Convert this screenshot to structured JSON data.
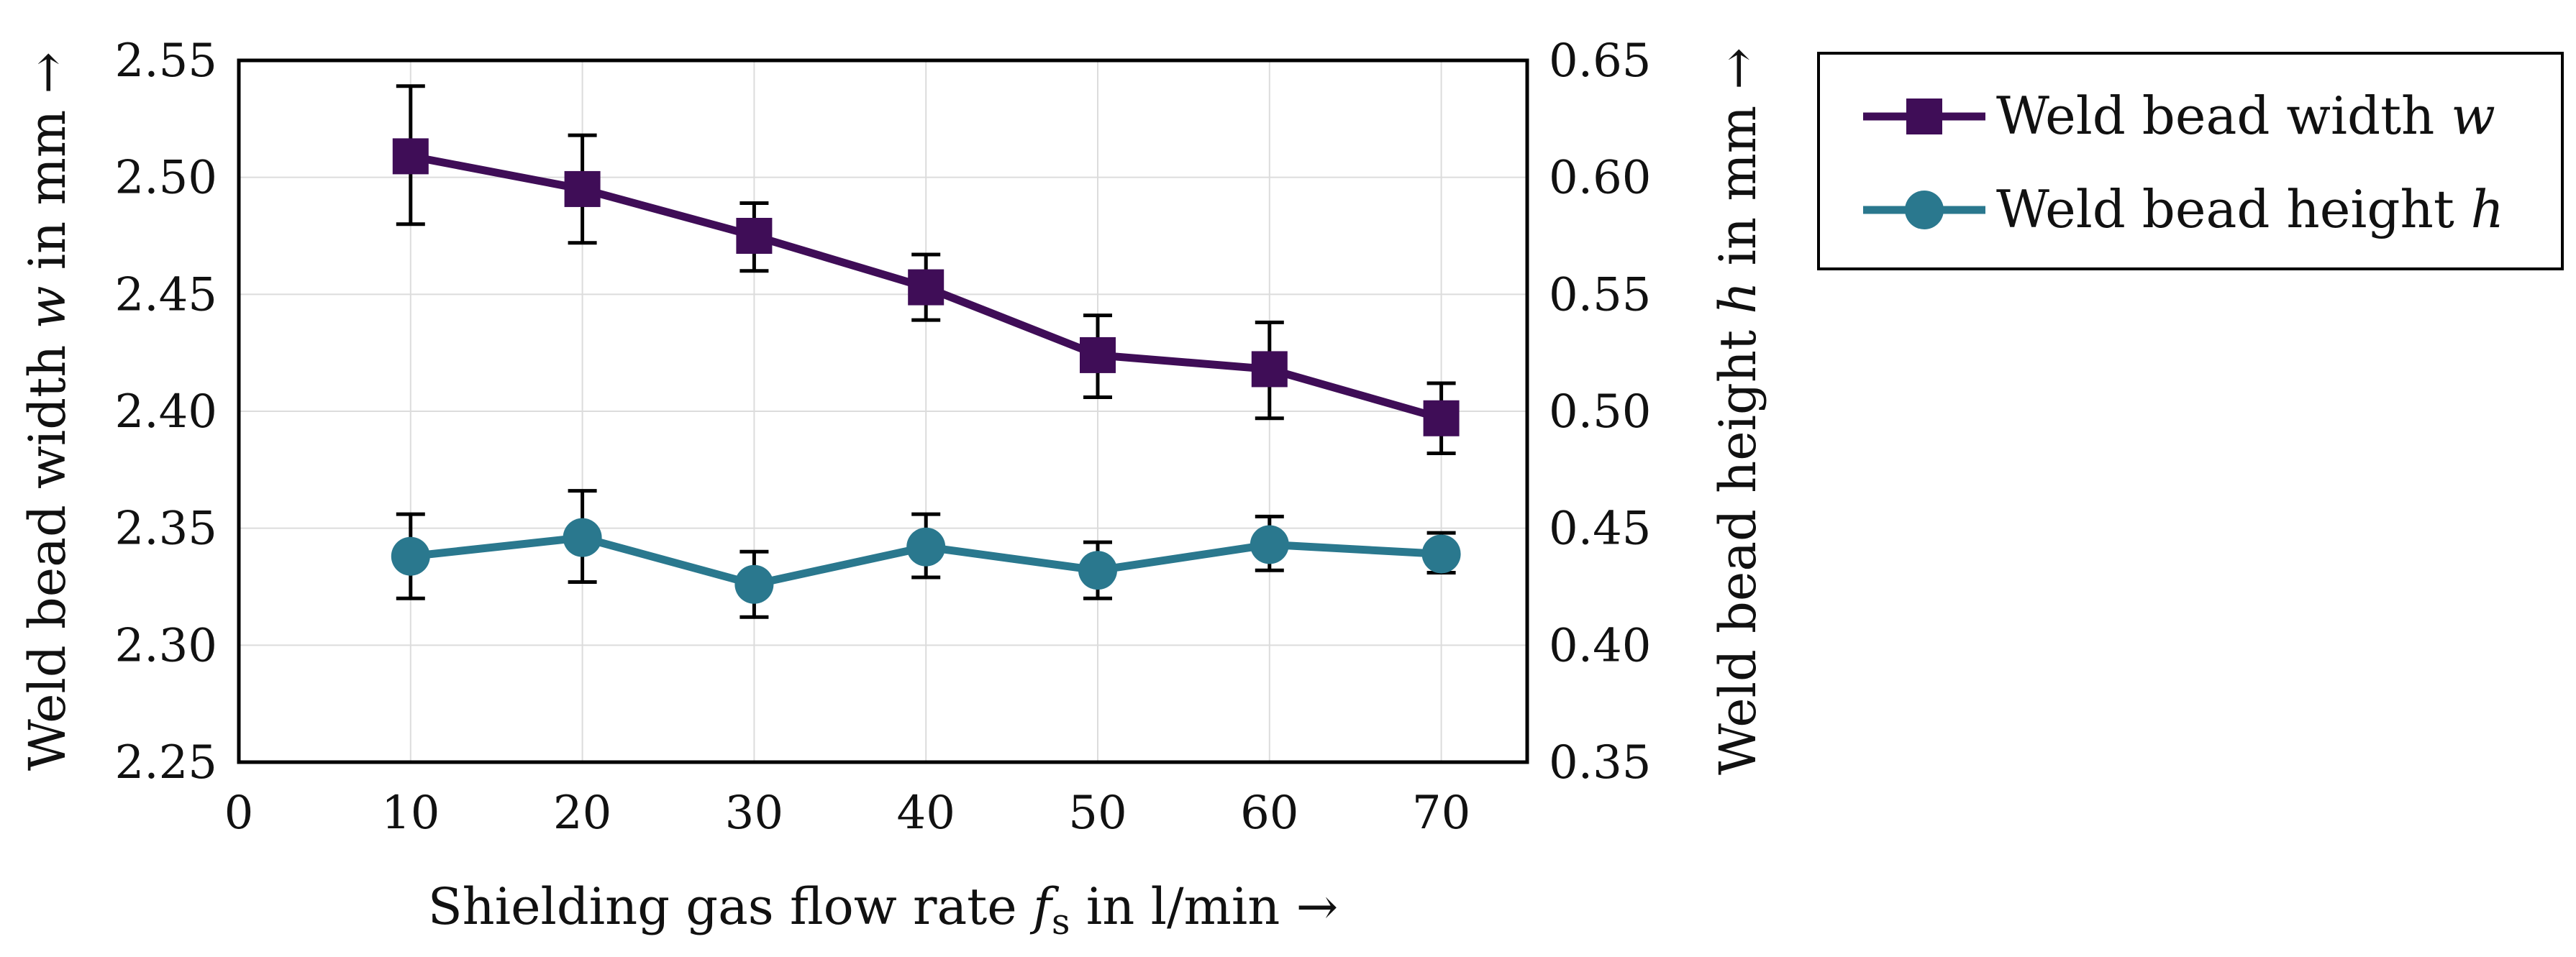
{
  "chart_data": {
    "type": "line",
    "x": [
      10,
      20,
      30,
      40,
      50,
      60,
      70
    ],
    "xlim": [
      0,
      75
    ],
    "xticks": [
      "0",
      "10",
      "20",
      "30",
      "40",
      "50",
      "60",
      "70"
    ],
    "xlabel": {
      "prefix": "Shielding gas flow rate ",
      "symbol": "f",
      "subscript": "s",
      "suffix": " in l/min →"
    },
    "ylabel_left": {
      "prefix": "Weld bead width ",
      "symbol": "w",
      "suffix": " in mm →"
    },
    "ylabel_right": {
      "prefix": "Weld bead height ",
      "symbol": "h",
      "suffix": " in mm →"
    },
    "ylim_left": [
      2.25,
      2.55
    ],
    "yticks_left": [
      "2.25",
      "2.30",
      "2.35",
      "2.40",
      "2.45",
      "2.50",
      "2.55"
    ],
    "ylim_right": [
      0.35,
      0.65
    ],
    "yticks_right": [
      "0.35",
      "0.40",
      "0.45",
      "0.50",
      "0.55",
      "0.60",
      "0.65"
    ],
    "grid": true,
    "legend_position": "outside-right-top",
    "series": [
      {
        "name": "Weld bead width",
        "symbol": "w",
        "axis": "left",
        "marker": "square",
        "color": "#3f0d57",
        "values": [
          2.509,
          2.495,
          2.475,
          2.453,
          2.424,
          2.418,
          2.397
        ],
        "error_low": [
          2.48,
          2.472,
          2.46,
          2.439,
          2.406,
          2.397,
          2.382
        ],
        "error_high": [
          2.539,
          2.518,
          2.489,
          2.467,
          2.441,
          2.438,
          2.412
        ]
      },
      {
        "name": "Weld bead height",
        "symbol": "h",
        "axis": "right",
        "marker": "circle",
        "color": "#2a788e",
        "values": [
          0.438,
          0.446,
          0.426,
          0.442,
          0.432,
          0.443,
          0.439
        ],
        "error_low": [
          0.42,
          0.427,
          0.412,
          0.429,
          0.42,
          0.432,
          0.431
        ],
        "error_high": [
          0.456,
          0.466,
          0.44,
          0.456,
          0.444,
          0.455,
          0.448
        ]
      }
    ]
  }
}
